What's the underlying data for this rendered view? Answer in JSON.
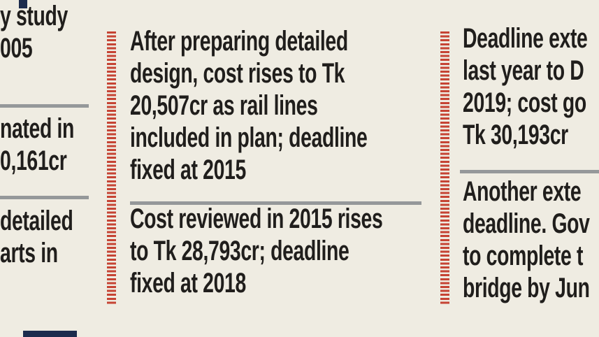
{
  "meta": {
    "background_color": "#efece2",
    "text_color": "#201e1c",
    "accent_red": "#c64434",
    "separator_gray": "#95989a",
    "marker_navy": "#1b2b4d"
  },
  "timeline": {
    "column_left": {
      "block_1": {
        "lines": [
          "y study",
          "005"
        ]
      },
      "block_2": {
        "lines": [
          "nated in",
          "0,161cr"
        ]
      },
      "block_3": {
        "lines": [
          "detailed",
          "arts in"
        ]
      }
    },
    "column_middle": {
      "block_1": {
        "lines": [
          "After preparing detailed",
          "design, cost rises to Tk",
          "20,507cr as rail lines",
          "included in plan; deadline",
          "fixed at 2015"
        ]
      },
      "block_2": {
        "lines": [
          "Cost reviewed in 2015 rises",
          "to Tk 28,793cr; deadline",
          "fixed at 2018"
        ]
      }
    },
    "column_right": {
      "block_1": {
        "lines": [
          "Deadline exte",
          "last year to D",
          "2019; cost go",
          "Tk 30,193cr"
        ]
      },
      "block_2": {
        "lines": [
          "Another exte",
          "deadline. Gov",
          "to complete t",
          "bridge by Jun"
        ]
      }
    }
  }
}
